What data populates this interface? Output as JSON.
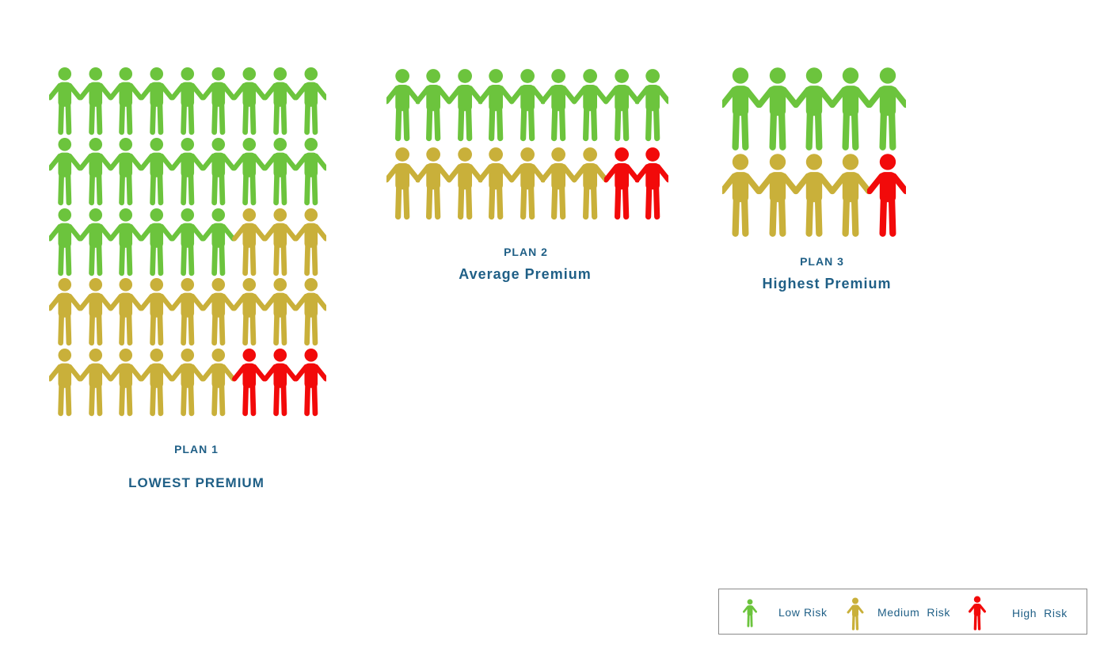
{
  "colors": {
    "low": "#6cc43d",
    "medium": "#c9b03a",
    "high": "#f20a0a",
    "text": "#1f5f86"
  },
  "plans": [
    {
      "label": "PLAN 1",
      "premium": "LOWEST PREMIUM",
      "rows": [
        [
          "low",
          "low",
          "low",
          "low",
          "low",
          "low",
          "low",
          "low",
          "low"
        ],
        [
          "low",
          "low",
          "low",
          "low",
          "low",
          "low",
          "low",
          "low",
          "low"
        ],
        [
          "low",
          "low",
          "low",
          "low",
          "low",
          "low",
          "medium",
          "medium",
          "medium"
        ],
        [
          "medium",
          "medium",
          "medium",
          "medium",
          "medium",
          "medium",
          "medium",
          "medium",
          "medium"
        ],
        [
          "medium",
          "medium",
          "medium",
          "medium",
          "medium",
          "medium",
          "high",
          "high",
          "high"
        ]
      ]
    },
    {
      "label": "PLAN 2",
      "premium": "Average Premium",
      "rows": [
        [
          "low",
          "low",
          "low",
          "low",
          "low",
          "low",
          "low",
          "low",
          "low"
        ],
        [
          "medium",
          "medium",
          "medium",
          "medium",
          "medium",
          "medium",
          "medium",
          "high",
          "high"
        ]
      ]
    },
    {
      "label": "PLAN 3",
      "premium": "Highest Premium",
      "rows": [
        [
          "low",
          "low",
          "low",
          "low",
          "low"
        ],
        [
          "medium",
          "medium",
          "medium",
          "medium",
          "high"
        ]
      ]
    }
  ],
  "legend": {
    "low": {
      "label": "Low Risk",
      "icon": "person-icon"
    },
    "medium": {
      "label": "Medium  Risk",
      "icon": "person-icon"
    },
    "high": {
      "label": "High  Risk",
      "icon": "person-icon"
    }
  }
}
